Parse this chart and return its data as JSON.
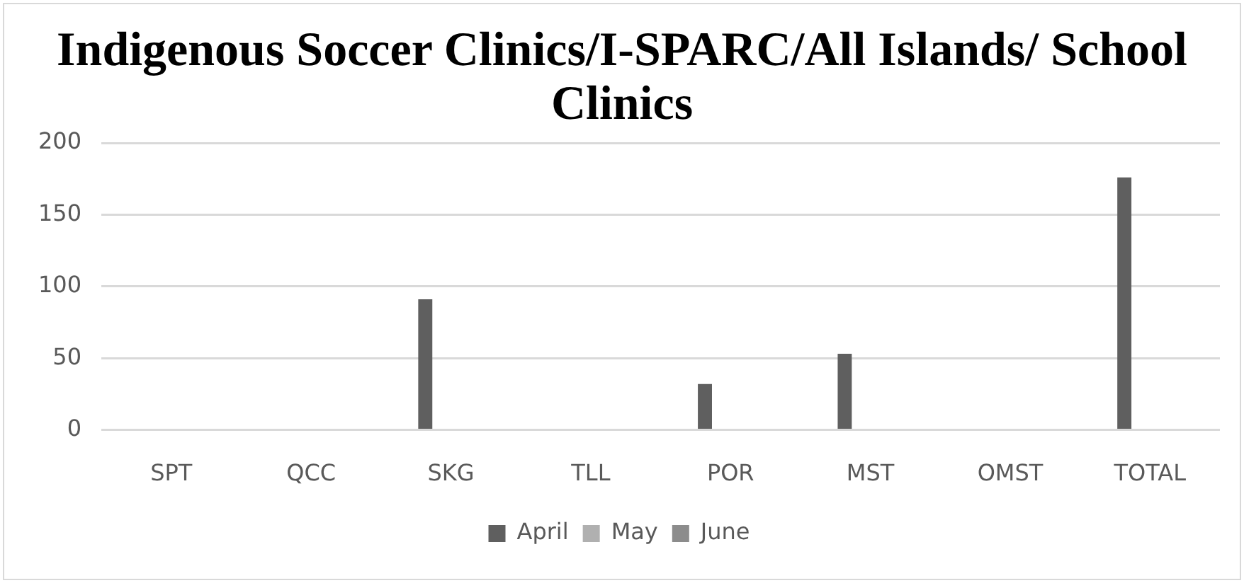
{
  "chart_data": {
    "type": "bar",
    "title": "Indigenous Soccer Clinics/I-SPARC/All Islands/ School Clinics",
    "categories": [
      "SPT",
      "QCC",
      "SKG",
      "TLL",
      "POR",
      "MST",
      "OMST",
      "TOTAL"
    ],
    "series": [
      {
        "name": "April",
        "color": "#5f5f5f",
        "values": [
          0,
          0,
          91,
          0,
          32,
          53,
          0,
          176
        ]
      },
      {
        "name": "May",
        "color": "#b0b0b0",
        "values": [
          0,
          0,
          0,
          0,
          0,
          0,
          0,
          0
        ]
      },
      {
        "name": "June",
        "color": "#8c8c8c",
        "values": [
          0,
          0,
          0,
          0,
          0,
          0,
          0,
          0
        ]
      }
    ],
    "ylim": [
      0,
      200
    ],
    "yticks": [
      0,
      50,
      100,
      150,
      200
    ],
    "grid": "y",
    "legend": "bottom"
  }
}
